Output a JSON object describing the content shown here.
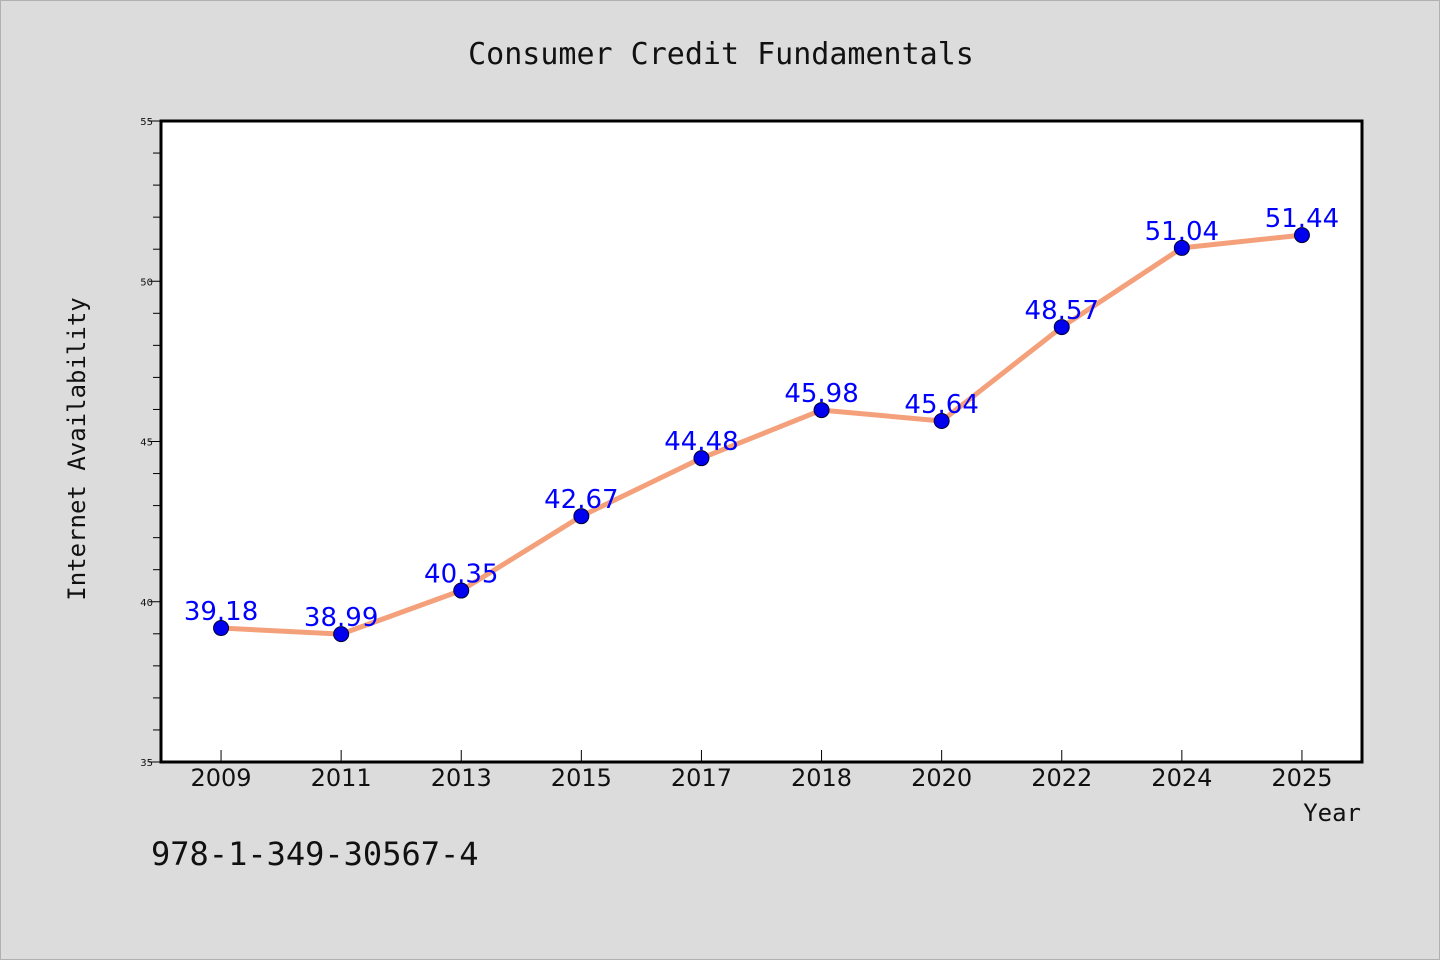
{
  "chart_data": {
    "type": "line",
    "title": "Consumer Credit Fundamentals",
    "xlabel": "Year",
    "ylabel": "Internet Availability",
    "categories": [
      "2009",
      "2011",
      "2013",
      "2015",
      "2017",
      "2018",
      "2020",
      "2022",
      "2024",
      "2025"
    ],
    "series": [
      {
        "values": [
          39.18,
          38.99,
          40.35,
          42.67,
          44.48,
          45.98,
          45.64,
          48.57,
          51.04,
          51.44
        ],
        "data_labels": [
          "39.18",
          "38.99",
          "40.35",
          "42.67",
          "44.48",
          "45.98",
          "45.64",
          "48.57",
          "51.04",
          "51.44"
        ],
        "line_color": "#f4a07a",
        "marker_color": "#0000ee"
      }
    ],
    "ylim": [
      35,
      55
    ],
    "yticks": [
      "35",
      "40",
      "45",
      "50",
      "55"
    ],
    "grid": false,
    "legend": false
  },
  "annotation": {
    "isbn": "978-1-349-30567-4"
  },
  "colors": {
    "background": "#dcdcdc",
    "plot_background": "#ffffff",
    "data_label": "#0000ff"
  }
}
